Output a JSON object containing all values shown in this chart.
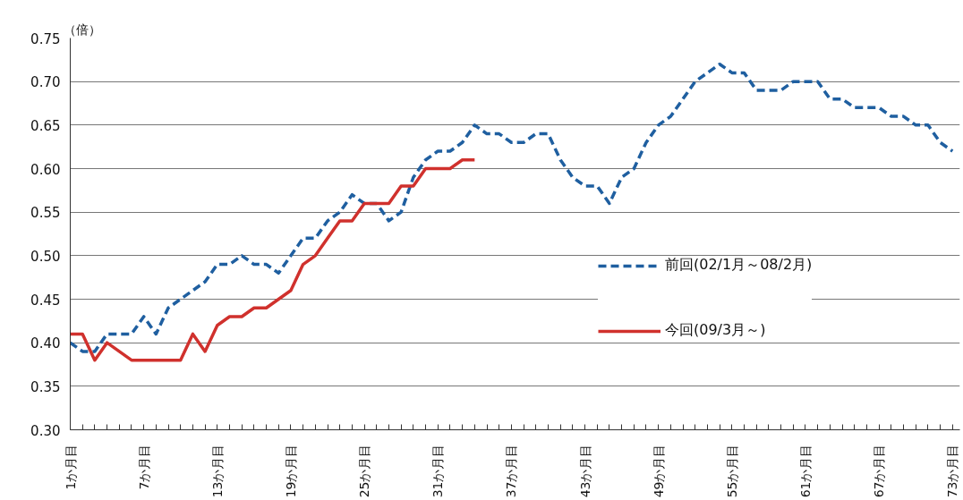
{
  "chart_data": {
    "type": "line",
    "ylabel": "（倍）",
    "categories": [
      "1か月目",
      null,
      null,
      null,
      null,
      null,
      "7か月目",
      null,
      null,
      null,
      null,
      null,
      "13か月目",
      null,
      null,
      null,
      null,
      null,
      "19か月目",
      null,
      null,
      null,
      null,
      null,
      "25か月目",
      null,
      null,
      null,
      null,
      null,
      "31か月目",
      null,
      null,
      null,
      null,
      null,
      "37か月目",
      null,
      null,
      null,
      null,
      null,
      "43か月目",
      null,
      null,
      null,
      null,
      null,
      "49か月目",
      null,
      null,
      null,
      null,
      null,
      "55か月目",
      null,
      null,
      null,
      null,
      null,
      "61か月目",
      null,
      null,
      null,
      null,
      null,
      "67か月目",
      null,
      null,
      null,
      null,
      null,
      "73か月目"
    ],
    "series": [
      {
        "name": "前回(02/1月～08/2月)",
        "color": "#1f5fa0",
        "line_style": "dashed",
        "values": [
          0.4,
          0.39,
          0.39,
          0.41,
          0.41,
          0.41,
          0.43,
          0.41,
          0.44,
          0.45,
          0.46,
          0.47,
          0.49,
          0.49,
          0.5,
          0.49,
          0.49,
          0.48,
          0.5,
          0.52,
          0.52,
          0.54,
          0.55,
          0.57,
          0.56,
          0.56,
          0.54,
          0.55,
          0.59,
          0.61,
          0.62,
          0.62,
          0.63,
          0.65,
          0.64,
          0.64,
          0.63,
          0.63,
          0.64,
          0.64,
          0.61,
          0.59,
          0.58,
          0.58,
          0.56,
          0.59,
          0.6,
          0.63,
          0.65,
          0.66,
          0.68,
          0.7,
          0.71,
          0.72,
          0.71,
          0.71,
          0.69,
          0.69,
          0.69,
          0.7,
          0.7,
          0.7,
          0.68,
          0.68,
          0.67,
          0.67,
          0.67,
          0.66,
          0.66,
          0.65,
          0.65,
          0.63,
          0.62
        ]
      },
      {
        "name": "今回(09/3月～)",
        "color": "#d0312d",
        "line_style": "solid",
        "values": [
          0.41,
          0.41,
          0.38,
          0.4,
          0.39,
          0.38,
          0.38,
          0.38,
          0.38,
          0.38,
          0.41,
          0.39,
          0.42,
          0.43,
          0.43,
          0.44,
          0.44,
          0.45,
          0.46,
          0.49,
          0.5,
          0.52,
          0.54,
          0.54,
          0.56,
          0.56,
          0.56,
          0.58,
          0.58,
          0.6,
          0.6,
          0.6,
          0.61,
          0.61,
          null,
          null,
          null,
          null,
          null,
          null,
          null,
          null,
          null,
          null,
          null,
          null,
          null,
          null,
          null,
          null,
          null,
          null,
          null,
          null,
          null,
          null,
          null,
          null,
          null,
          null,
          null,
          null,
          null,
          null,
          null,
          null,
          null,
          null,
          null,
          null,
          null,
          null,
          null
        ]
      }
    ],
    "ylim": [
      0.3,
      0.75
    ],
    "yticks": [
      {
        "value": 0.3,
        "label": "0.30"
      },
      {
        "value": 0.35,
        "label": "0.35"
      },
      {
        "value": 0.4,
        "label": "0.40"
      },
      {
        "value": 0.45,
        "label": "0.45"
      },
      {
        "value": 0.5,
        "label": "0.50"
      },
      {
        "value": 0.55,
        "label": "0.55"
      },
      {
        "value": 0.6,
        "label": "0.60"
      },
      {
        "value": 0.65,
        "label": "0.65"
      },
      {
        "value": 0.7,
        "label": "0.70"
      },
      {
        "value": 0.75,
        "label": "0.75"
      }
    ],
    "grid": "y",
    "legend": "right",
    "marker": "none"
  }
}
